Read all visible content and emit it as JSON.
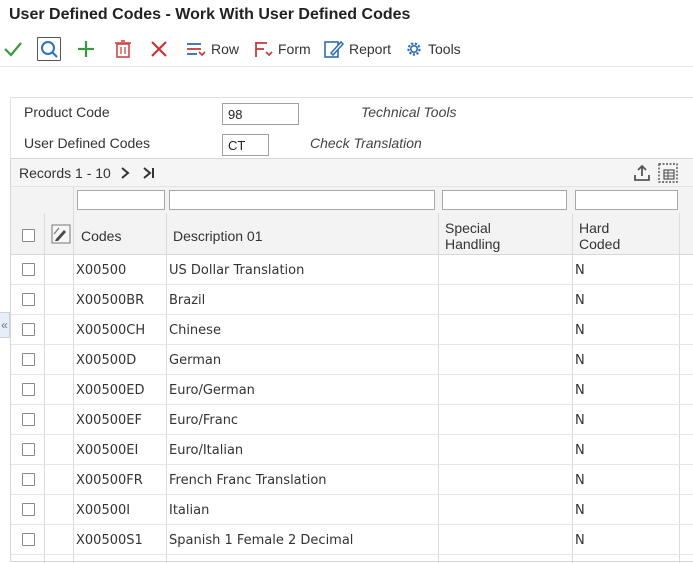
{
  "window": {
    "title": "User Defined Codes - Work With User Defined Codes"
  },
  "toolbar": {
    "select_icon": "checkmark-icon",
    "find_icon": "magnifier-icon",
    "add_icon": "plus-icon",
    "delete_icon": "trash-icon",
    "close_icon": "x-icon",
    "row_label": "Row",
    "form_label": "Form",
    "report_label": "Report",
    "tools_label": "Tools"
  },
  "header": {
    "product_code_label": "Product Code",
    "product_code_value": "98",
    "product_code_desc": "Technical Tools",
    "udc_label": "User Defined Codes",
    "udc_value": "CT",
    "udc_desc": "Check Translation"
  },
  "grid": {
    "records_label": "Records 1 - 10",
    "columns": {
      "codes": "Codes",
      "description": "Description 01",
      "special_line1": "Special",
      "special_line2": "Handling",
      "hard_line1": "Hard",
      "hard_line2": "Coded"
    },
    "rows": [
      {
        "code": "X00500",
        "description": "US Dollar Translation",
        "special": "",
        "hard": "N"
      },
      {
        "code": "X00500BR",
        "description": "Brazil",
        "special": "",
        "hard": "N"
      },
      {
        "code": "X00500CH",
        "description": "Chinese",
        "special": "",
        "hard": "N"
      },
      {
        "code": "X00500D",
        "description": "German",
        "special": "",
        "hard": "N"
      },
      {
        "code": "X00500ED",
        "description": "Euro/German",
        "special": "",
        "hard": "N"
      },
      {
        "code": "X00500EF",
        "description": "Euro/Franc",
        "special": "",
        "hard": "N"
      },
      {
        "code": "X00500EI",
        "description": "Euro/Italian",
        "special": "",
        "hard": "N"
      },
      {
        "code": "X00500FR",
        "description": "French Franc Translation",
        "special": "",
        "hard": "N"
      },
      {
        "code": "X00500I",
        "description": "Italian",
        "special": "",
        "hard": "N"
      },
      {
        "code": "X00500S1",
        "description": "Spanish 1 Female 2 Decimal",
        "special": "",
        "hard": "N"
      }
    ]
  },
  "colors": {
    "select_green": "#3a9a3a",
    "find_blue": "#2a73c0",
    "delete_red": "#d24545",
    "close_red": "#d22b2b",
    "menu_red": "#c73a3a",
    "menu_blue": "#2f6db2"
  }
}
